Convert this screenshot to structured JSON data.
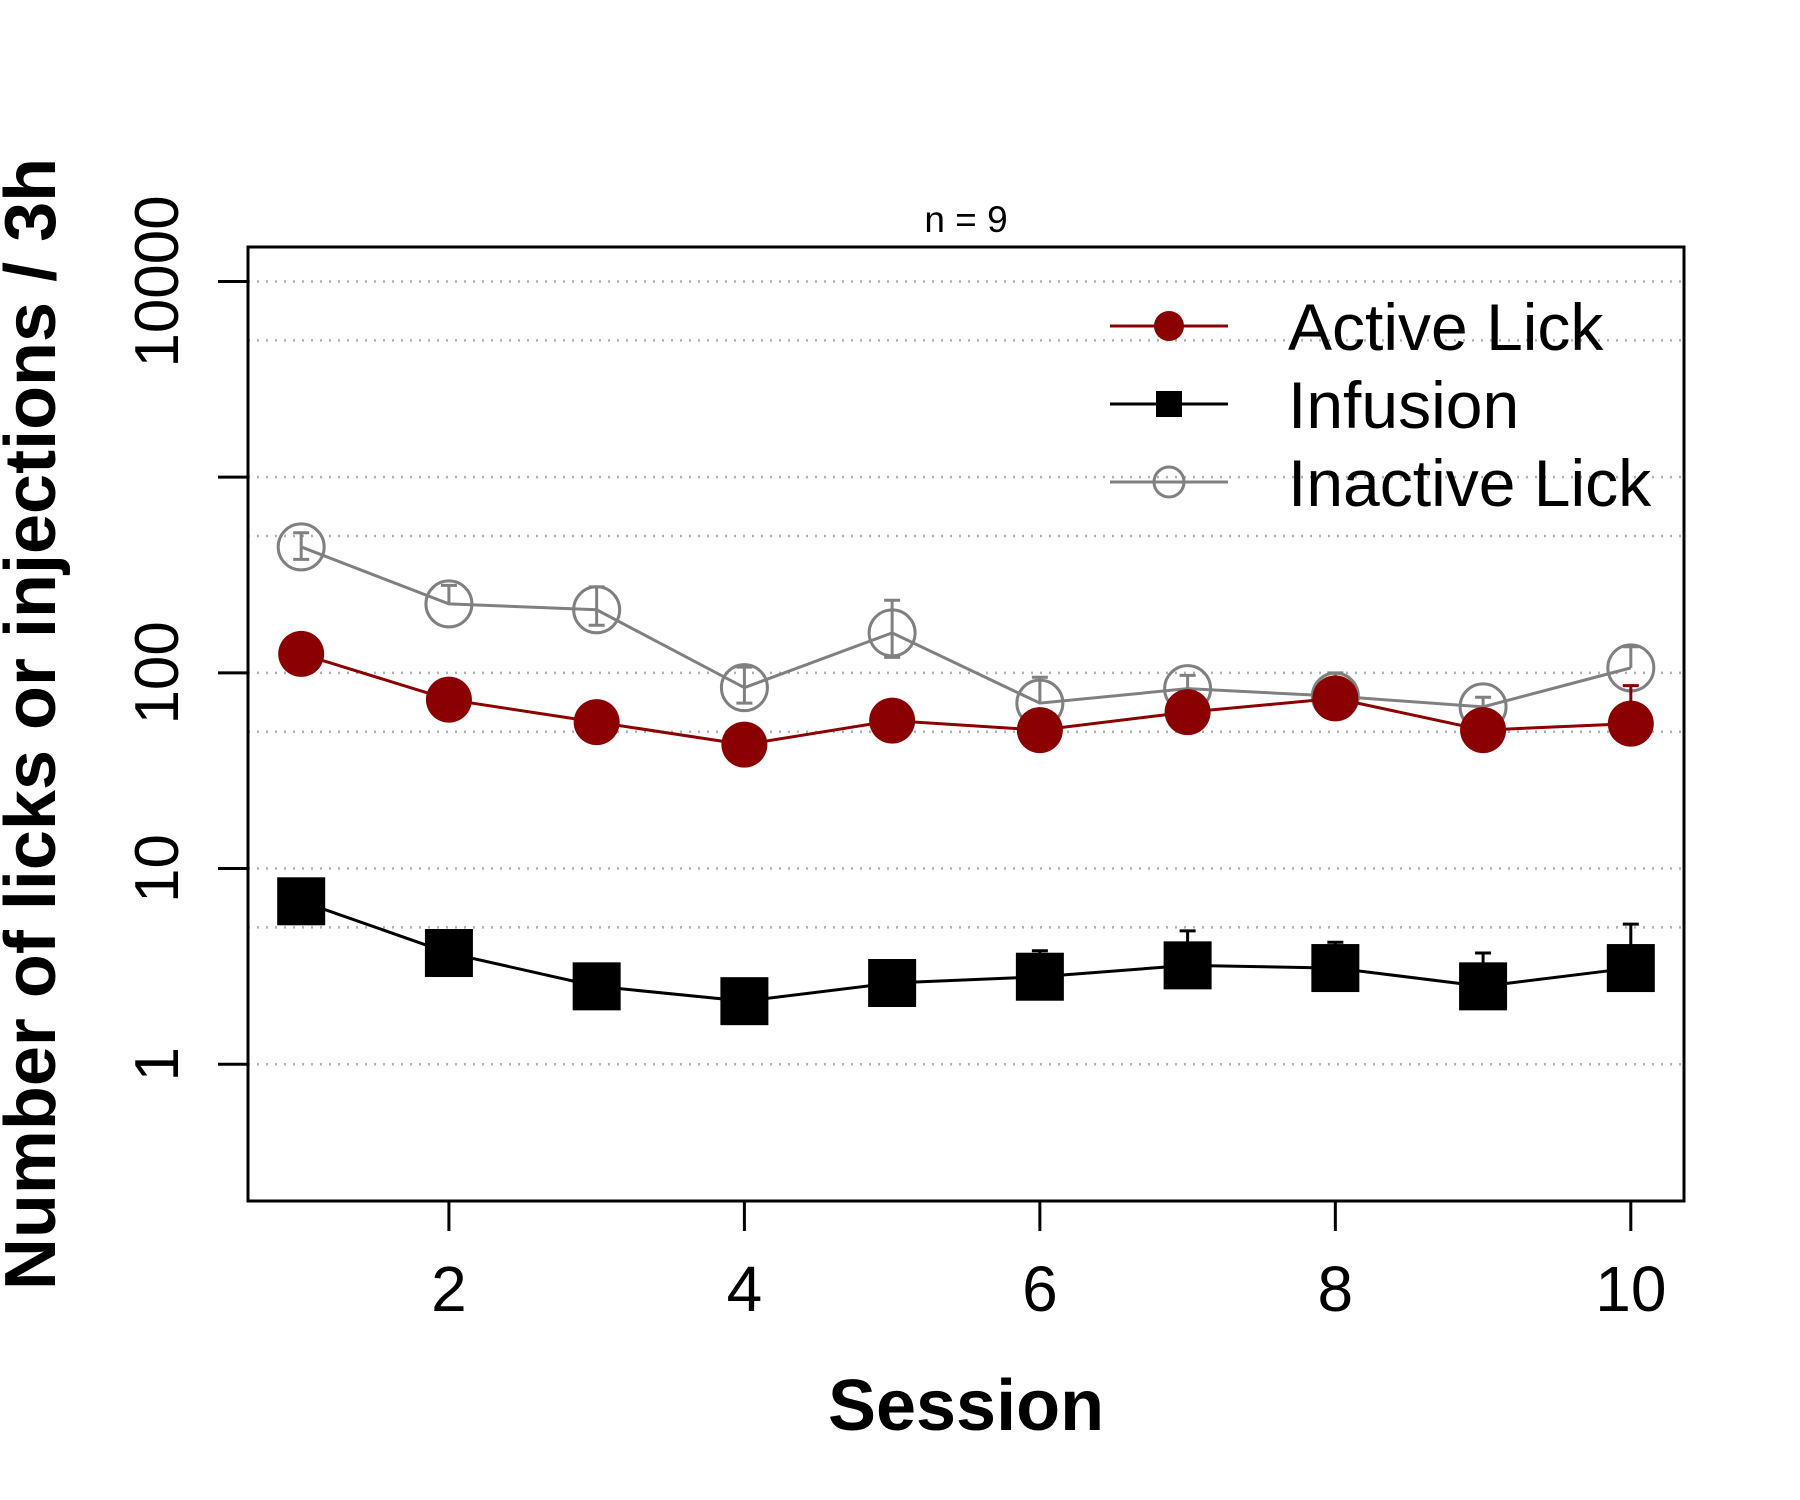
{
  "chart_data": {
    "type": "line",
    "title": "n = 9",
    "xlabel": "Session",
    "ylabel": "Number of licks or injections / 3h",
    "x": [
      1,
      2,
      3,
      4,
      5,
      6,
      7,
      8,
      9,
      10
    ],
    "x_ticks": [
      "2",
      "4",
      "6",
      "8",
      "10"
    ],
    "x_tick_values": [
      2,
      4,
      6,
      8,
      10
    ],
    "y_scale": "log",
    "y_ticks": [
      "1",
      "10",
      "100",
      "10000"
    ],
    "y_tick_values": [
      1,
      10,
      100,
      10000
    ],
    "y_minor_ticks": [
      1000
    ],
    "gridlines_y": [
      1,
      5,
      10,
      50,
      100,
      500,
      1000,
      5000,
      10000
    ],
    "grid": "horizontal dotted",
    "ylim": [
      0.2,
      15000
    ],
    "xlim": [
      0.64,
      10.36
    ],
    "legend_position": "top-right",
    "series": [
      {
        "name": "Active Lick",
        "color": "#8b0000",
        "marker": "filled-circle",
        "values": [
          125,
          73,
          56,
          43,
          57,
          51,
          63,
          74,
          51,
          55
        ],
        "error_upper": [
          null,
          null,
          null,
          null,
          null,
          null,
          null,
          null,
          null,
          86
        ]
      },
      {
        "name": "Infusion",
        "color": "#000000",
        "marker": "filled-square",
        "values": [
          6.8,
          3.7,
          2.5,
          2.1,
          2.6,
          2.8,
          3.2,
          3.1,
          2.5,
          3.1
        ],
        "error_upper": [
          null,
          4.8,
          null,
          null,
          null,
          3.8,
          4.8,
          4.2,
          3.7,
          5.2
        ]
      },
      {
        "name": "Inactive Lick",
        "color": "#808080",
        "marker": "open-circle",
        "values": [
          440,
          225,
          210,
          84,
          160,
          70,
          83,
          76,
          67,
          106
        ],
        "error_upper": [
          520,
          280,
          275,
          107,
          235,
          95,
          97,
          100,
          75,
          136
        ],
        "error_lower": [
          380,
          null,
          175,
          70,
          120,
          null,
          null,
          60,
          55,
          null
        ]
      }
    ]
  }
}
